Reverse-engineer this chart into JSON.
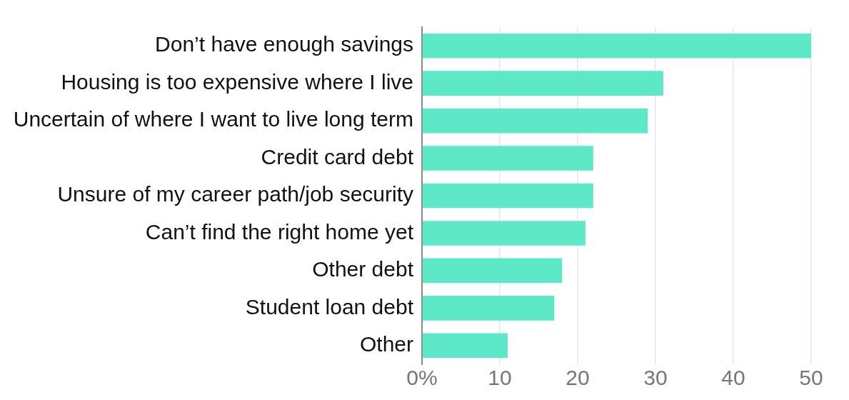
{
  "chart_data": {
    "type": "bar",
    "orientation": "horizontal",
    "categories": [
      "Don’t have enough savings",
      "Housing is too expensive where I live",
      "Uncertain of where I want to live long term",
      "Credit card debt",
      "Unsure of my career path/job security",
      "Can’t find the right home yet",
      "Other debt",
      "Student loan debt",
      "Other"
    ],
    "values": [
      50,
      31,
      29,
      22,
      22,
      21,
      18,
      17,
      11
    ],
    "color": "#5de8c8",
    "xlim": [
      0,
      50
    ],
    "xticks": [
      {
        "value": 0,
        "label": "0%"
      },
      10,
      20,
      30,
      40,
      50
    ],
    "grid": "x"
  }
}
